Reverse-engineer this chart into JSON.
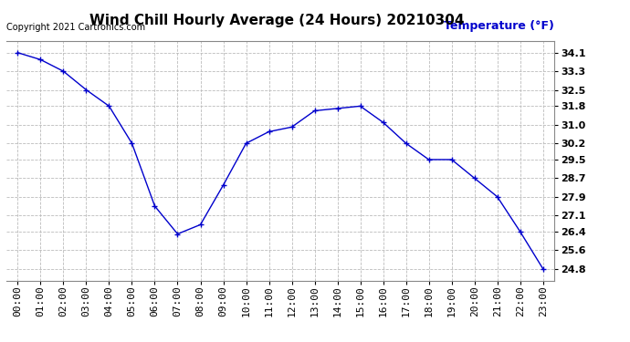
{
  "title": "Wind Chill Hourly Average (24 Hours) 20210304",
  "ylabel": "Temperature (°F)",
  "copyright_text": "Copyright 2021 Cartronics.com",
  "hours": [
    "00:00",
    "01:00",
    "02:00",
    "03:00",
    "04:00",
    "05:00",
    "06:00",
    "07:00",
    "08:00",
    "09:00",
    "10:00",
    "11:00",
    "12:00",
    "13:00",
    "14:00",
    "15:00",
    "16:00",
    "17:00",
    "18:00",
    "19:00",
    "20:00",
    "21:00",
    "22:00",
    "23:00"
  ],
  "values": [
    34.1,
    33.8,
    33.3,
    32.5,
    31.8,
    30.2,
    27.5,
    26.3,
    26.7,
    28.4,
    30.2,
    30.7,
    30.9,
    31.6,
    31.7,
    31.8,
    31.1,
    30.2,
    29.5,
    29.5,
    28.7,
    27.9,
    26.4,
    24.8
  ],
  "line_color": "#0000cc",
  "marker": "+",
  "ytick_values": [
    34.1,
    33.3,
    32.5,
    31.8,
    31.0,
    30.2,
    29.5,
    28.7,
    27.9,
    27.1,
    26.4,
    25.6,
    24.8
  ],
  "ytick_labels": [
    "34.1",
    "33.3",
    "32.5",
    "31.8",
    "31.0",
    "30.2",
    "29.5",
    "28.7",
    "27.9",
    "27.1",
    "26.4",
    "25.6",
    "24.8"
  ],
  "ylim_min": 24.3,
  "ylim_max": 34.6,
  "grid_color": "#bbbbbb",
  "background_color": "#ffffff",
  "title_color": "#000000",
  "ylabel_color": "#0000cc",
  "title_fontsize": 11,
  "tick_fontsize": 8,
  "copyright_fontsize": 7,
  "ylabel_fontsize": 9
}
